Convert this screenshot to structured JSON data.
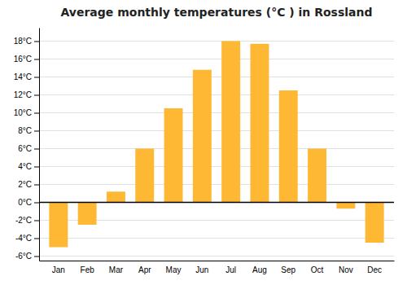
{
  "chart_data": {
    "type": "bar",
    "title": "Average monthly temperatures (°C ) in Rossland",
    "categories": [
      "Jan",
      "Feb",
      "Mar",
      "Apr",
      "May",
      "Jun",
      "Jul",
      "Aug",
      "Sep",
      "Oct",
      "Nov",
      "Dec"
    ],
    "values": [
      -5.0,
      -2.5,
      1.2,
      6.0,
      10.5,
      14.8,
      18.0,
      17.7,
      12.5,
      6.0,
      -0.7,
      -4.5
    ],
    "color": "#FFB833",
    "ylim": [
      -6.5,
      19.5
    ],
    "yticks": [
      {
        "value": -6,
        "label": "-6°C"
      },
      {
        "value": -4,
        "label": "-4°C"
      },
      {
        "value": -2,
        "label": "-2°C"
      },
      {
        "value": 0,
        "label": "0°C"
      },
      {
        "value": 2,
        "label": "2°C"
      },
      {
        "value": 4,
        "label": "4°C"
      },
      {
        "value": 6,
        "label": "6°C"
      },
      {
        "value": 8,
        "label": "8°C"
      },
      {
        "value": 10,
        "label": "10°C"
      },
      {
        "value": 12,
        "label": "12°C"
      },
      {
        "value": 14,
        "label": "14°C"
      },
      {
        "value": 16,
        "label": "16°C"
      },
      {
        "value": 18,
        "label": "18°C"
      }
    ],
    "grid": true
  }
}
